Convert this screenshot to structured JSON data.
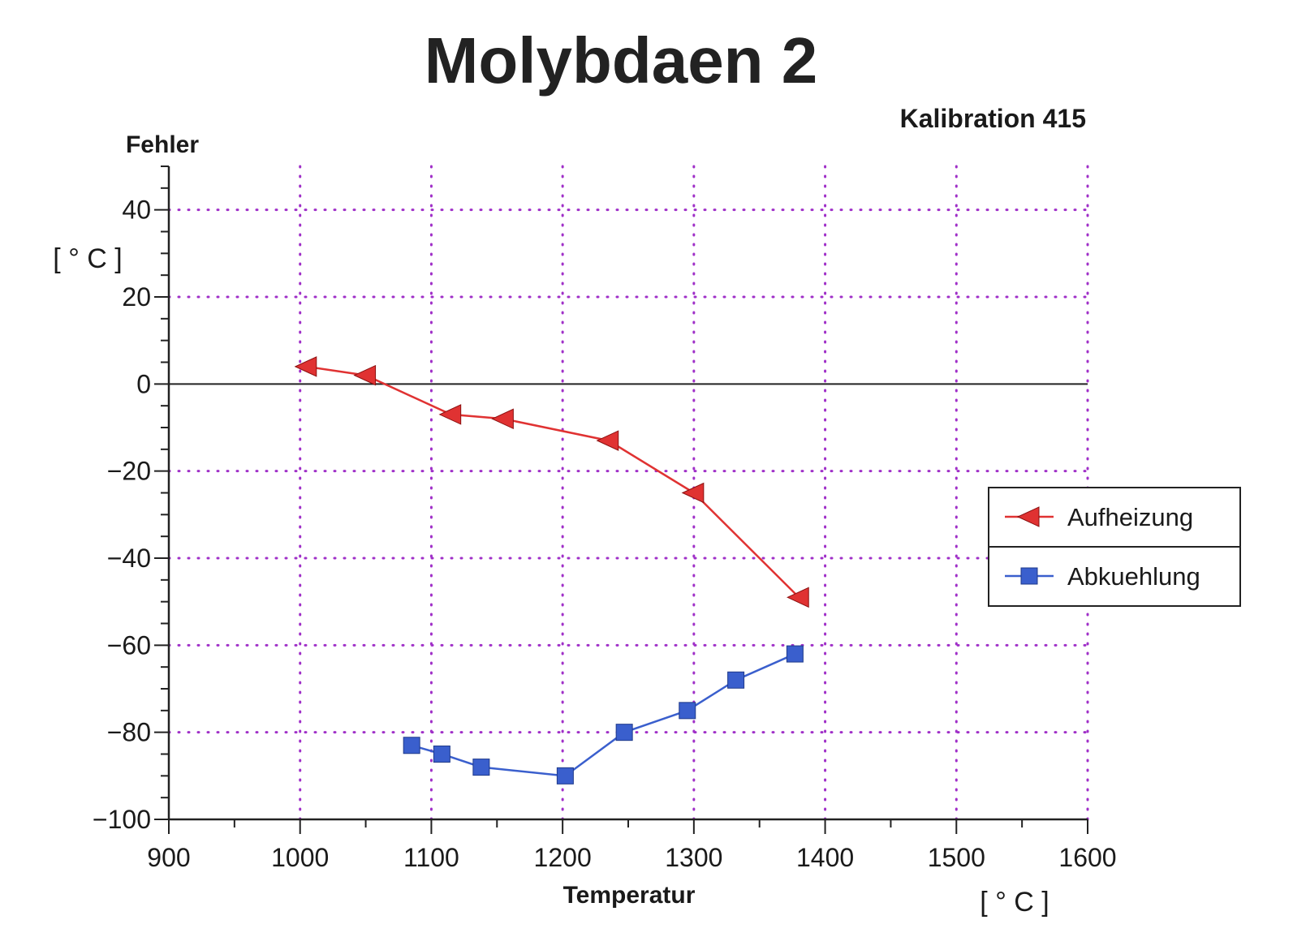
{
  "chart_data": {
    "type": "line",
    "title": "Molybdaen 2",
    "subtitle": "Kalibration 415",
    "ylabel": "Fehler",
    "yunit": "[ ° C ]",
    "xlabel": "Temperatur",
    "xunit": "[ ° C ]",
    "xlim": [
      900,
      1600
    ],
    "ylim": [
      -100,
      50
    ],
    "xticks": [
      900,
      1000,
      1100,
      1200,
      1300,
      1400,
      1500,
      1600
    ],
    "xtick_labels": [
      "900",
      "1000",
      "1100",
      "1200",
      "1300",
      "1400",
      "1500",
      "1600"
    ],
    "yticks": [
      -100,
      -80,
      -60,
      -40,
      -20,
      0,
      20,
      40
    ],
    "ytick_labels": [
      "−100",
      "−80",
      "−60",
      "−40",
      "−20",
      "0",
      "20",
      "40"
    ],
    "grid": true,
    "legend_position": "right",
    "series": [
      {
        "name": "Aufheizung",
        "color": "#e03232",
        "marker": "left-triangle",
        "x": [
          1005,
          1050,
          1115,
          1155,
          1235,
          1300,
          1380
        ],
        "y": [
          4,
          2,
          -7,
          -8,
          -13,
          -25,
          -49
        ]
      },
      {
        "name": "Abkuehlung",
        "color": "#3a5fcd",
        "marker": "square",
        "x": [
          1085,
          1108,
          1138,
          1202,
          1247,
          1295,
          1332,
          1377
        ],
        "y": [
          -83,
          -85,
          -88,
          -90,
          -80,
          -75,
          -68,
          -62
        ]
      }
    ]
  }
}
